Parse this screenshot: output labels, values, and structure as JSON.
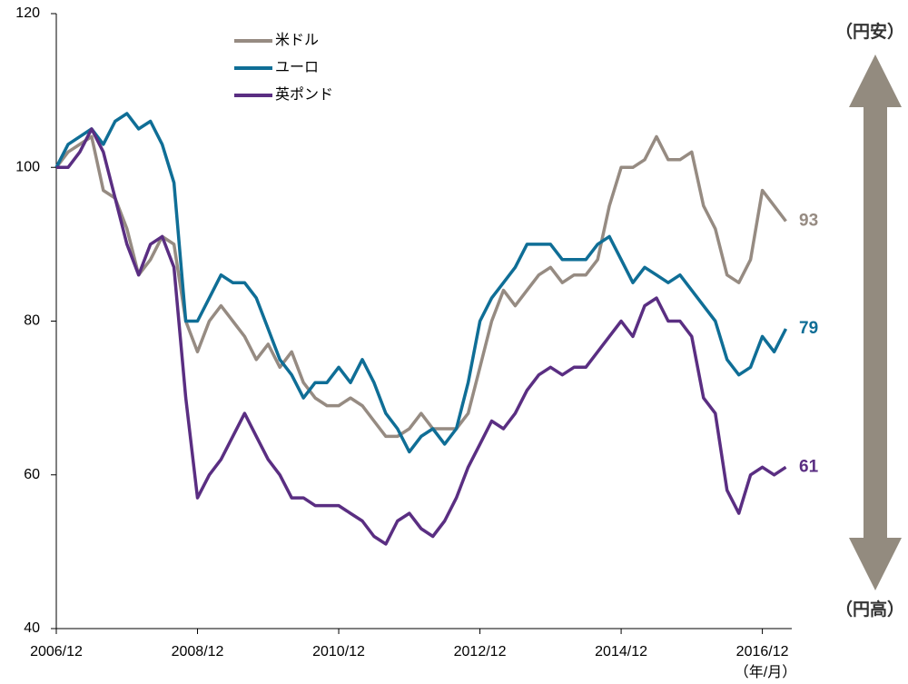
{
  "chart_data": {
    "type": "line",
    "x": [
      "2006/12",
      "2007/02",
      "2007/04",
      "2007/06",
      "2007/08",
      "2007/10",
      "2007/12",
      "2008/02",
      "2008/04",
      "2008/06",
      "2008/08",
      "2008/10",
      "2008/12",
      "2009/02",
      "2009/04",
      "2009/06",
      "2009/08",
      "2009/10",
      "2009/12",
      "2010/02",
      "2010/04",
      "2010/06",
      "2010/08",
      "2010/10",
      "2010/12",
      "2011/02",
      "2011/04",
      "2011/06",
      "2011/08",
      "2011/10",
      "2011/12",
      "2012/02",
      "2012/04",
      "2012/06",
      "2012/08",
      "2012/10",
      "2012/12",
      "2013/02",
      "2013/04",
      "2013/06",
      "2013/08",
      "2013/10",
      "2013/12",
      "2014/02",
      "2014/04",
      "2014/06",
      "2014/08",
      "2014/10",
      "2014/12",
      "2015/02",
      "2015/04",
      "2015/06",
      "2015/08",
      "2015/10",
      "2015/12",
      "2016/02",
      "2016/04",
      "2016/06",
      "2016/08",
      "2016/10",
      "2016/12",
      "2017/02",
      "2017/04"
    ],
    "series": [
      {
        "name": "米ドル",
        "color": "#968b82",
        "values": [
          100,
          102,
          103,
          104,
          97,
          96,
          92,
          86,
          88,
          91,
          90,
          80,
          76,
          80,
          82,
          80,
          78,
          75,
          77,
          74,
          76,
          72,
          70,
          69,
          69,
          70,
          69,
          67,
          65,
          65,
          66,
          68,
          66,
          66,
          66,
          68,
          74,
          80,
          84,
          82,
          84,
          86,
          87,
          85,
          86,
          86,
          88,
          95,
          100,
          100,
          101,
          104,
          101,
          101,
          102,
          95,
          92,
          86,
          85,
          88,
          97,
          95,
          93
        ]
      },
      {
        "name": "ユーロ",
        "color": "#0f6e96",
        "values": [
          100,
          103,
          104,
          105,
          103,
          106,
          107,
          105,
          106,
          103,
          98,
          80,
          80,
          83,
          86,
          85,
          85,
          83,
          79,
          75,
          73,
          70,
          72,
          72,
          74,
          72,
          75,
          72,
          68,
          66,
          63,
          65,
          66,
          64,
          66,
          72,
          80,
          83,
          85,
          87,
          90,
          90,
          90,
          88,
          88,
          88,
          90,
          91,
          88,
          85,
          87,
          86,
          85,
          86,
          84,
          82,
          80,
          75,
          73,
          74,
          78,
          76,
          79
        ]
      },
      {
        "name": "英ポンド",
        "color": "#5a2e82",
        "values": [
          100,
          100,
          102,
          105,
          102,
          96,
          90,
          86,
          90,
          91,
          87,
          70,
          57,
          60,
          62,
          65,
          68,
          65,
          62,
          60,
          57,
          57,
          56,
          56,
          56,
          55,
          54,
          52,
          51,
          54,
          55,
          53,
          52,
          54,
          57,
          61,
          64,
          67,
          66,
          68,
          71,
          73,
          74,
          73,
          74,
          74,
          76,
          78,
          80,
          78,
          82,
          83,
          80,
          80,
          78,
          70,
          68,
          58,
          55,
          60,
          61,
          60,
          61
        ]
      }
    ],
    "xlim": [
      "2006/12",
      "2017/05"
    ],
    "xticks": [
      "2006/12",
      "2008/12",
      "2010/12",
      "2012/12",
      "2014/12",
      "2016/12"
    ],
    "ylim": [
      40,
      120
    ],
    "yticks": [
      40,
      60,
      80,
      100,
      120
    ],
    "annotations": [
      "（円安）",
      "（円高）",
      "（年/月）"
    ]
  }
}
